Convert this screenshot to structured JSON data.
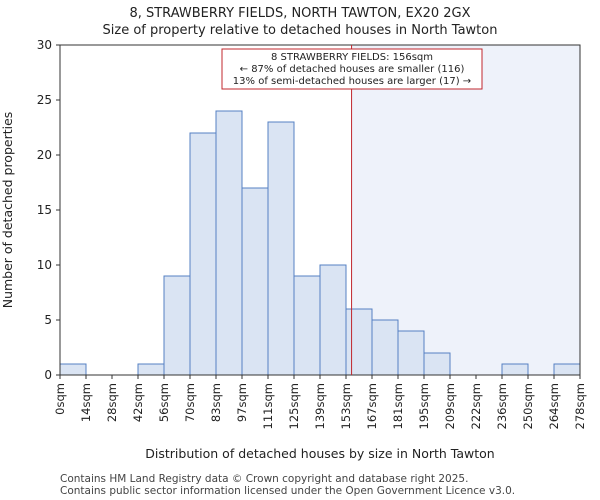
{
  "chart_data": {
    "type": "bar",
    "title": "8, STRAWBERRY FIELDS, NORTH TAWTON, EX20 2GX",
    "subtitle": "Size of property relative to detached houses in North Tawton",
    "xlabel": "Distribution of detached houses by size in North Tawton",
    "ylabel": "Number of detached properties",
    "ylim": [
      0,
      30
    ],
    "yticks": [
      0,
      5,
      10,
      15,
      20,
      25,
      30
    ],
    "bin_edges": [
      0,
      14,
      28,
      42,
      56,
      70,
      83,
      97,
      111,
      125,
      139,
      153,
      167,
      181,
      195,
      209,
      222,
      236,
      250,
      264,
      278
    ],
    "xtick_labels": [
      "0sqm",
      "14sqm",
      "28sqm",
      "42sqm",
      "56sqm",
      "70sqm",
      "83sqm",
      "97sqm",
      "111sqm",
      "125sqm",
      "139sqm",
      "153sqm",
      "167sqm",
      "181sqm",
      "195sqm",
      "209sqm",
      "222sqm",
      "236sqm",
      "250sqm",
      "264sqm",
      "278sqm"
    ],
    "values": [
      1,
      0,
      0,
      1,
      9,
      22,
      24,
      17,
      23,
      9,
      10,
      6,
      5,
      4,
      2,
      0,
      0,
      1,
      0,
      1
    ],
    "marker": {
      "value": 156,
      "label": "8 STRAWBERRY FIELDS: 156sqm"
    },
    "annotation": [
      "8 STRAWBERRY FIELDS: 156sqm",
      "← 87% of detached houses are smaller (116)",
      "13% of semi-detached houses are larger (17) →"
    ],
    "colors": {
      "bar_fill": "#dae4f3",
      "bar_edge": "#5580c3",
      "marker": "#c0272d",
      "shade": "#eef2fa"
    }
  },
  "footer": {
    "line1": "Contains HM Land Registry data © Crown copyright and database right 2025.",
    "line2": "Contains public sector information licensed under the Open Government Licence v3.0."
  }
}
